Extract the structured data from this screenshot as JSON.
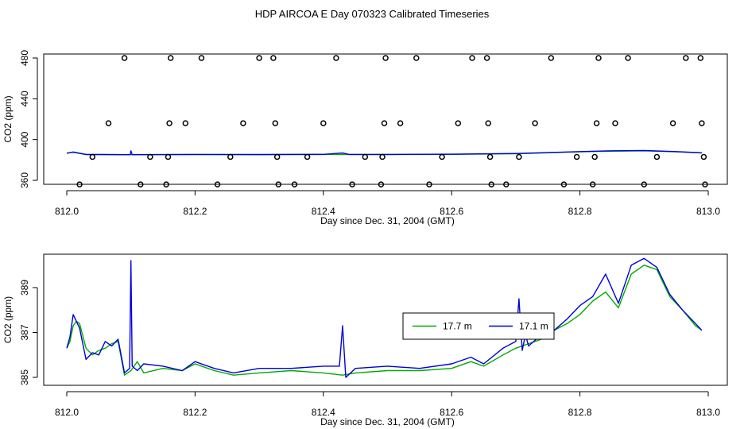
{
  "figure_title": "HDP AIRCOA E  Day 070323  Calibrated Timeseries",
  "chart_data": [
    {
      "type": "scatter",
      "title": "",
      "xlabel": "Day since Dec. 31, 2004 (GMT)",
      "ylabel": "CO2 (ppm)",
      "xlim": [
        812.0,
        813.0
      ],
      "ylim": [
        355,
        480
      ],
      "x_ticks": [
        812.0,
        812.2,
        812.4,
        812.6,
        812.8,
        813.0
      ],
      "x_tick_labels": [
        "812.0",
        "812.2",
        "812.4",
        "812.6",
        "812.8",
        "813.0"
      ],
      "y_ticks": [
        360,
        400,
        440,
        480
      ],
      "y_tick_labels": [
        "360",
        "400",
        "440",
        "480"
      ],
      "points": [
        [
          812.02,
          356
        ],
        [
          812.04,
          383
        ],
        [
          812.065,
          416
        ],
        [
          812.09,
          480
        ],
        [
          812.115,
          356
        ],
        [
          812.13,
          383
        ],
        [
          812.155,
          356
        ],
        [
          812.158,
          383
        ],
        [
          812.16,
          416
        ],
        [
          812.162,
          480
        ],
        [
          812.185,
          416
        ],
        [
          812.21,
          480
        ],
        [
          812.235,
          356
        ],
        [
          812.255,
          383
        ],
        [
          812.275,
          416
        ],
        [
          812.3,
          480
        ],
        [
          812.322,
          480
        ],
        [
          812.325,
          416
        ],
        [
          812.328,
          383
        ],
        [
          812.33,
          356
        ],
        [
          812.355,
          356
        ],
        [
          812.375,
          383
        ],
        [
          812.4,
          416
        ],
        [
          812.42,
          480
        ],
        [
          812.445,
          356
        ],
        [
          812.465,
          383
        ],
        [
          812.49,
          356
        ],
        [
          812.492,
          383
        ],
        [
          812.495,
          416
        ],
        [
          812.497,
          480
        ],
        [
          812.52,
          416
        ],
        [
          812.545,
          480
        ],
        [
          812.565,
          356
        ],
        [
          812.585,
          383
        ],
        [
          812.61,
          416
        ],
        [
          812.632,
          480
        ],
        [
          812.655,
          480
        ],
        [
          812.657,
          416
        ],
        [
          812.66,
          383
        ],
        [
          812.662,
          356
        ],
        [
          812.685,
          356
        ],
        [
          812.705,
          383
        ],
        [
          812.73,
          416
        ],
        [
          812.755,
          480
        ],
        [
          812.775,
          356
        ],
        [
          812.795,
          383
        ],
        [
          812.82,
          356
        ],
        [
          812.823,
          383
        ],
        [
          812.826,
          416
        ],
        [
          812.829,
          480
        ],
        [
          812.855,
          416
        ],
        [
          812.875,
          480
        ],
        [
          812.9,
          356
        ],
        [
          812.92,
          383
        ],
        [
          812.945,
          416
        ],
        [
          812.965,
          480
        ],
        [
          812.988,
          480
        ],
        [
          812.99,
          416
        ],
        [
          812.993,
          383
        ],
        [
          812.995,
          356
        ]
      ],
      "series": [
        {
          "name": "",
          "color": "#00aa00",
          "points": [
            [
              812.0,
              386.8
            ],
            [
              812.01,
              387.5
            ],
            [
              812.03,
              385.3
            ],
            [
              812.1,
              385.2
            ],
            [
              812.2,
              385.3
            ],
            [
              812.3,
              385.2
            ],
            [
              812.4,
              385.4
            ],
            [
              812.5,
              385.3
            ],
            [
              812.6,
              385.5
            ],
            [
              812.7,
              386.0
            ],
            [
              812.75,
              387.0
            ],
            [
              812.8,
              388.0
            ],
            [
              812.85,
              388.6
            ],
            [
              812.9,
              389.0
            ],
            [
              812.95,
              388.0
            ],
            [
              812.99,
              386.8
            ]
          ]
        },
        {
          "name": "",
          "color": "#0000dd",
          "points": [
            [
              812.0,
              386.5
            ],
            [
              812.01,
              387.8
            ],
            [
              812.03,
              385.4
            ],
            [
              812.099,
              385.2
            ],
            [
              812.1,
              389.0
            ],
            [
              812.102,
              385.2
            ],
            [
              812.2,
              385.4
            ],
            [
              812.3,
              385.3
            ],
            [
              812.4,
              385.5
            ],
            [
              812.43,
              386.8
            ],
            [
              812.44,
              385.4
            ],
            [
              812.5,
              385.4
            ],
            [
              812.6,
              385.6
            ],
            [
              812.7,
              386.3
            ],
            [
              812.75,
              387.2
            ],
            [
              812.8,
              388.2
            ],
            [
              812.85,
              389.0
            ],
            [
              812.9,
              389.2
            ],
            [
              812.95,
              388.2
            ],
            [
              812.99,
              387.0
            ]
          ]
        }
      ]
    },
    {
      "type": "line",
      "title": "",
      "xlabel": "Day since Dec. 31, 2004 (GMT)",
      "ylabel": "CO2 (ppm)",
      "xlim": [
        812.0,
        813.0
      ],
      "ylim": [
        384.75,
        390.5
      ],
      "x_ticks": [
        812.0,
        812.2,
        812.4,
        812.6,
        812.8,
        813.0
      ],
      "x_tick_labels": [
        "812.0",
        "812.2",
        "812.4",
        "812.6",
        "812.8",
        "813.0"
      ],
      "y_ticks": [
        385,
        387,
        389
      ],
      "y_tick_labels": [
        "385",
        "387",
        "389"
      ],
      "legend": {
        "position": "center-right",
        "entries": [
          {
            "label": "17.7 m",
            "color": "#00aa00"
          },
          {
            "label": "17.1 m",
            "color": "#0000dd"
          }
        ]
      },
      "series": [
        {
          "name": "17.7 m",
          "color": "#00aa00",
          "x": [
            812.0,
            812.005,
            812.01,
            812.015,
            812.02,
            812.03,
            812.04,
            812.05,
            812.06,
            812.07,
            812.08,
            812.09,
            812.1,
            812.11,
            812.12,
            812.15,
            812.18,
            812.2,
            812.23,
            812.26,
            812.3,
            812.35,
            812.4,
            812.43,
            812.45,
            812.5,
            812.55,
            812.6,
            812.63,
            812.65,
            812.68,
            812.7,
            812.72,
            812.74,
            812.76,
            812.78,
            812.8,
            812.82,
            812.84,
            812.86,
            812.88,
            812.9,
            812.92,
            812.94,
            812.96,
            812.98,
            812.99
          ],
          "values": [
            386.3,
            386.6,
            387.3,
            387.5,
            387.4,
            386.3,
            386.0,
            386.2,
            386.3,
            386.5,
            386.6,
            385.1,
            385.3,
            385.7,
            385.2,
            385.4,
            385.3,
            385.6,
            385.3,
            385.1,
            385.2,
            385.3,
            385.2,
            385.1,
            385.2,
            385.3,
            385.3,
            385.4,
            385.7,
            385.5,
            386.0,
            386.3,
            386.5,
            386.7,
            387.1,
            387.4,
            387.8,
            388.4,
            388.8,
            388.1,
            389.6,
            390.0,
            389.8,
            388.6,
            388.0,
            387.3,
            387.1
          ]
        },
        {
          "name": "17.1 m",
          "color": "#0000dd",
          "x": [
            812.0,
            812.005,
            812.01,
            812.015,
            812.02,
            812.03,
            812.04,
            812.05,
            812.06,
            812.07,
            812.08,
            812.09,
            812.098,
            812.1,
            812.102,
            812.11,
            812.12,
            812.15,
            812.18,
            812.2,
            812.23,
            812.26,
            812.3,
            812.35,
            812.4,
            812.425,
            812.43,
            812.435,
            812.45,
            812.5,
            812.55,
            812.6,
            812.63,
            812.65,
            812.68,
            812.7,
            812.705,
            812.71,
            812.715,
            812.72,
            812.74,
            812.76,
            812.78,
            812.8,
            812.82,
            812.84,
            812.86,
            812.88,
            812.9,
            812.92,
            812.94,
            812.96,
            812.98,
            812.99
          ],
          "values": [
            386.3,
            386.8,
            387.8,
            387.5,
            387.2,
            385.8,
            386.1,
            386.0,
            386.6,
            386.4,
            386.7,
            385.2,
            385.4,
            390.2,
            385.5,
            385.3,
            385.6,
            385.5,
            385.3,
            385.7,
            385.4,
            385.2,
            385.4,
            385.4,
            385.5,
            385.5,
            387.3,
            385.0,
            385.4,
            385.5,
            385.4,
            385.6,
            385.9,
            385.6,
            386.3,
            386.6,
            388.5,
            386.2,
            386.9,
            386.4,
            386.9,
            387.1,
            387.6,
            388.2,
            388.6,
            389.6,
            388.3,
            390.0,
            390.3,
            389.9,
            388.7,
            388.0,
            387.4,
            387.1
          ]
        }
      ]
    }
  ]
}
